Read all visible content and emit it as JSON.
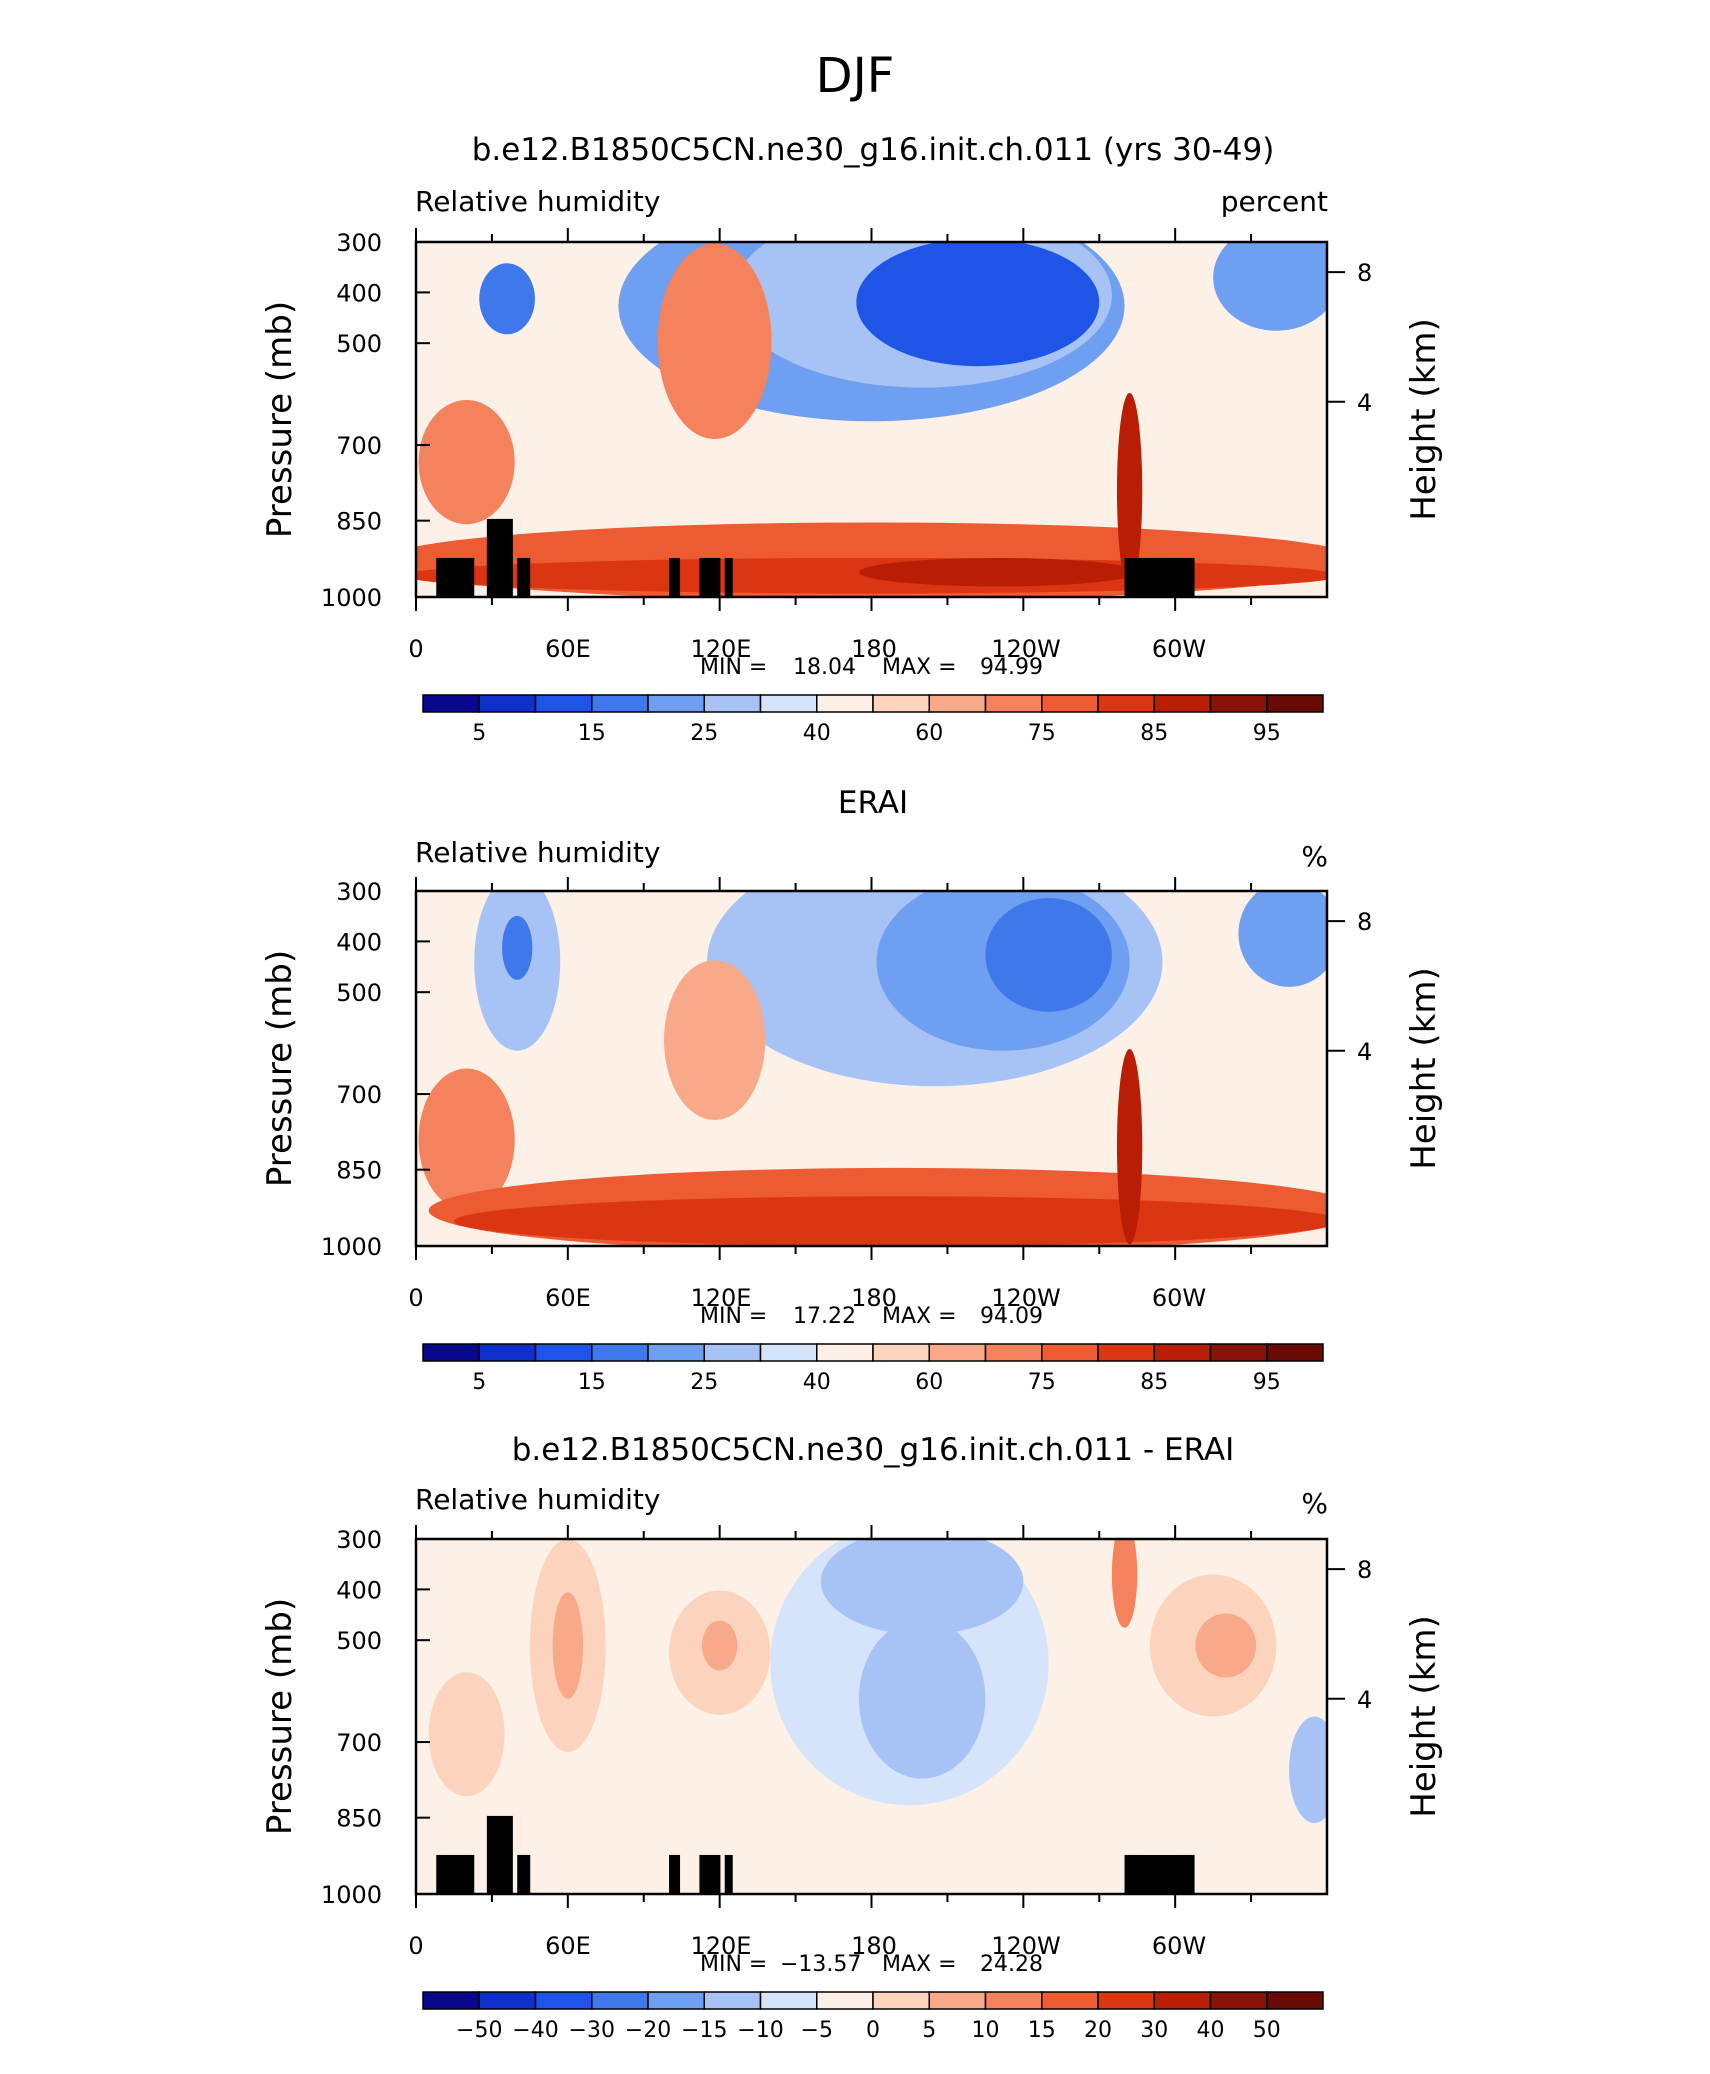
{
  "page": {
    "title": "DJF"
  },
  "chart_data": [
    {
      "type": "heatmap",
      "title": "b.e12.B1850C5CN.ne30_g16.init.ch.011 (yrs 30-49)",
      "left_label": "Relative humidity",
      "right_label": "percent",
      "ylabel": "Pressure (mb)",
      "y2label": "Height (km)",
      "y_ticks": [
        "300",
        "400",
        "500",
        "700",
        "850",
        "1000"
      ],
      "y2_ticks": [
        "8",
        "4"
      ],
      "x_ticks": [
        "0",
        "60E",
        "120E",
        "180",
        "120W",
        "60W"
      ],
      "xlim": [
        0,
        360
      ],
      "stats": {
        "min_label": "MIN =",
        "min": "18.04",
        "max_label": "MAX =",
        "max": "94.99"
      },
      "colorbar": {
        "labels": [
          "5",
          "15",
          "25",
          "40",
          "60",
          "75",
          "85",
          "95"
        ],
        "colors": [
          "#08088c",
          "#0e2fc9",
          "#1f55e6",
          "#3e78ea",
          "#6e9ff0",
          "#a7c3f6",
          "#d6e4fb",
          "#fdf0e6",
          "#fcd3bc",
          "#f8a98a",
          "#f4825d",
          "#ec5b32",
          "#dc3511",
          "#b91e04",
          "#8b1208",
          "#6a0a04"
        ]
      },
      "fields": [
        {
          "x": 180,
          "y": 0.18,
          "w": 200,
          "h": 0.65,
          "level": 4
        },
        {
          "x": 200,
          "y": 0.15,
          "w": 150,
          "h": 0.52,
          "level": 5
        },
        {
          "x": 222,
          "y": 0.17,
          "w": 96,
          "h": 0.36,
          "level": 2
        },
        {
          "x": 340,
          "y": 0.1,
          "w": 50,
          "h": 0.3,
          "level": 4
        },
        {
          "x": 36,
          "y": 0.16,
          "w": 22,
          "h": 0.2,
          "level": 3
        },
        {
          "x": 118,
          "y": 0.28,
          "w": 45,
          "h": 0.55,
          "level": 10
        },
        {
          "x": 20,
          "y": 0.62,
          "w": 38,
          "h": 0.35,
          "level": 10
        },
        {
          "x": 180,
          "y": 0.9,
          "w": 390,
          "h": 0.22,
          "level": 11
        },
        {
          "x": 180,
          "y": 0.94,
          "w": 370,
          "h": 0.1,
          "level": 12
        },
        {
          "x": 230,
          "y": 0.93,
          "w": 110,
          "h": 0.08,
          "level": 13
        },
        {
          "x": 282,
          "y": 0.7,
          "w": 10,
          "h": 0.55,
          "level": 13
        }
      ],
      "terrain": [
        [
          8,
          0.89
        ],
        [
          28,
          0.78
        ],
        [
          40,
          0.89
        ],
        [
          100,
          0.89
        ],
        [
          112,
          0.89
        ],
        [
          122,
          0.89
        ],
        [
          280,
          0.89
        ]
      ]
    },
    {
      "type": "heatmap",
      "title": "ERAI",
      "left_label": "Relative humidity",
      "right_label": "%",
      "ylabel": "Pressure (mb)",
      "y2label": "Height (km)",
      "y_ticks": [
        "300",
        "400",
        "500",
        "700",
        "850",
        "1000"
      ],
      "y2_ticks": [
        "8",
        "4"
      ],
      "x_ticks": [
        "0",
        "60E",
        "120E",
        "180",
        "120W",
        "60W"
      ],
      "xlim": [
        0,
        360
      ],
      "stats": {
        "min_label": "MIN =",
        "min": "17.22",
        "max_label": "MAX =",
        "max": "94.09"
      },
      "colorbar": {
        "labels": [
          "5",
          "15",
          "25",
          "40",
          "60",
          "75",
          "85",
          "95"
        ],
        "colors": [
          "#08088c",
          "#0e2fc9",
          "#1f55e6",
          "#3e78ea",
          "#6e9ff0",
          "#a7c3f6",
          "#d6e4fb",
          "#fdf0e6",
          "#fcd3bc",
          "#f8a98a",
          "#f4825d",
          "#ec5b32",
          "#dc3511",
          "#b91e04",
          "#8b1208",
          "#6a0a04"
        ]
      },
      "fields": [
        {
          "x": 205,
          "y": 0.2,
          "w": 180,
          "h": 0.7,
          "level": 5
        },
        {
          "x": 232,
          "y": 0.2,
          "w": 100,
          "h": 0.5,
          "level": 4
        },
        {
          "x": 250,
          "y": 0.18,
          "w": 50,
          "h": 0.32,
          "level": 3
        },
        {
          "x": 40,
          "y": 0.2,
          "w": 34,
          "h": 0.5,
          "level": 5
        },
        {
          "x": 40,
          "y": 0.16,
          "w": 12,
          "h": 0.18,
          "level": 3
        },
        {
          "x": 345,
          "y": 0.12,
          "w": 40,
          "h": 0.3,
          "level": 4
        },
        {
          "x": 118,
          "y": 0.42,
          "w": 40,
          "h": 0.45,
          "level": 9
        },
        {
          "x": 20,
          "y": 0.7,
          "w": 38,
          "h": 0.4,
          "level": 10
        },
        {
          "x": 190,
          "y": 0.9,
          "w": 370,
          "h": 0.24,
          "level": 11
        },
        {
          "x": 190,
          "y": 0.93,
          "w": 350,
          "h": 0.14,
          "level": 12
        },
        {
          "x": 282,
          "y": 0.72,
          "w": 10,
          "h": 0.55,
          "level": 13
        }
      ],
      "terrain": []
    },
    {
      "type": "heatmap",
      "title": "b.e12.B1850C5CN.ne30_g16.init.ch.011 - ERAI",
      "left_label": "Relative humidity",
      "right_label": "%",
      "ylabel": "Pressure (mb)",
      "y2label": "Height (km)",
      "y_ticks": [
        "300",
        "400",
        "500",
        "700",
        "850",
        "1000"
      ],
      "y2_ticks": [
        "8",
        "4"
      ],
      "x_ticks": [
        "0",
        "60E",
        "120E",
        "180",
        "120W",
        "60W"
      ],
      "xlim": [
        0,
        360
      ],
      "stats": {
        "min_label": "MIN =",
        "min": "−13.57",
        "max_label": "MAX =",
        "max": "24.28"
      },
      "colorbar": {
        "labels": [
          "−50",
          "−40",
          "−30",
          "−20",
          "−15",
          "−10",
          "−5",
          "0",
          "5",
          "10",
          "15",
          "20",
          "30",
          "40",
          "50"
        ],
        "colors": [
          "#08088c",
          "#0e2fc9",
          "#1f55e6",
          "#3e78ea",
          "#6e9ff0",
          "#a7c3f6",
          "#d6e4fb",
          "#fdf0e6",
          "#fcd3bc",
          "#f8a98a",
          "#f4825d",
          "#ec5b32",
          "#dc3511",
          "#b91e04",
          "#8b1208",
          "#6a0a04"
        ]
      },
      "fields": [
        {
          "x": 195,
          "y": 0.35,
          "w": 110,
          "h": 0.8,
          "level": 6
        },
        {
          "x": 200,
          "y": 0.12,
          "w": 80,
          "h": 0.3,
          "level": 5
        },
        {
          "x": 200,
          "y": 0.45,
          "w": 50,
          "h": 0.45,
          "level": 5
        },
        {
          "x": 60,
          "y": 0.3,
          "w": 30,
          "h": 0.6,
          "level": 8
        },
        {
          "x": 60,
          "y": 0.3,
          "w": 12,
          "h": 0.3,
          "level": 9
        },
        {
          "x": 120,
          "y": 0.32,
          "w": 40,
          "h": 0.35,
          "level": 8
        },
        {
          "x": 120,
          "y": 0.3,
          "w": 14,
          "h": 0.14,
          "level": 9
        },
        {
          "x": 315,
          "y": 0.3,
          "w": 50,
          "h": 0.4,
          "level": 8
        },
        {
          "x": 320,
          "y": 0.3,
          "w": 24,
          "h": 0.18,
          "level": 9
        },
        {
          "x": 280,
          "y": 0.1,
          "w": 10,
          "h": 0.3,
          "level": 10
        },
        {
          "x": 20,
          "y": 0.55,
          "w": 30,
          "h": 0.35,
          "level": 8
        },
        {
          "x": 355,
          "y": 0.65,
          "w": 20,
          "h": 0.3,
          "level": 5
        }
      ],
      "terrain": [
        [
          8,
          0.89
        ],
        [
          28,
          0.78
        ],
        [
          40,
          0.89
        ],
        [
          100,
          0.89
        ],
        [
          112,
          0.89
        ],
        [
          122,
          0.89
        ],
        [
          280,
          0.89
        ]
      ]
    }
  ]
}
